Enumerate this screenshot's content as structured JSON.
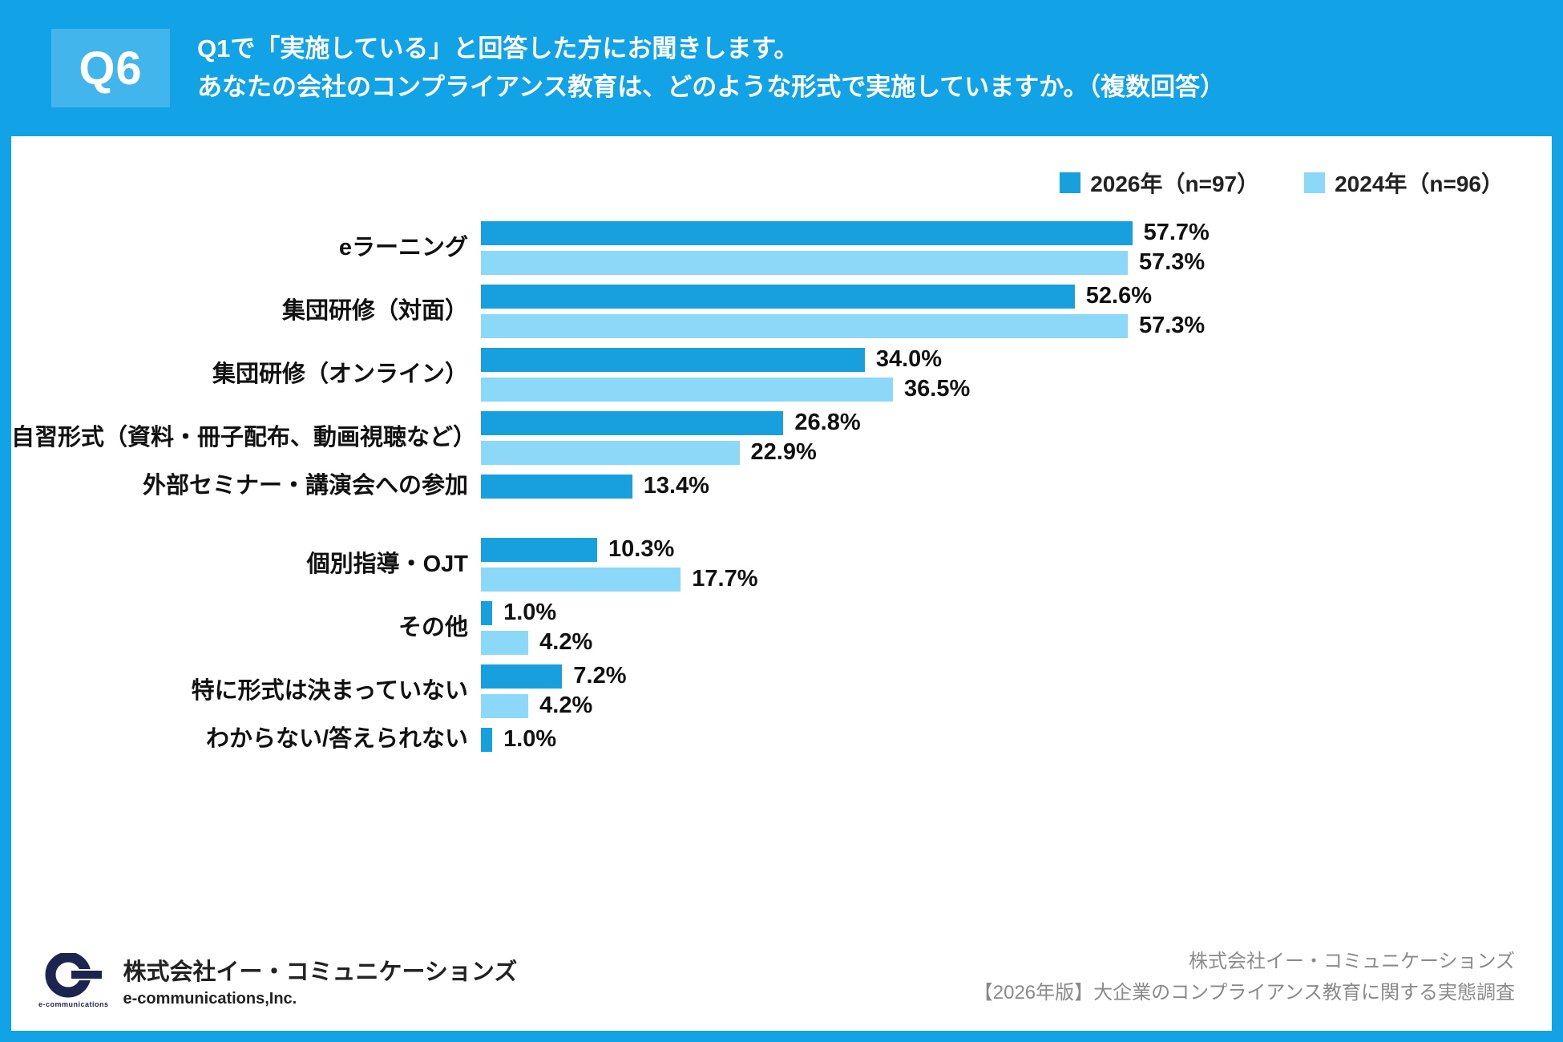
{
  "header": {
    "badge": "Q6",
    "title_line1": "Q1で「実施している」と回答した方にお聞きします。",
    "title_line2": "あなたの会社のコンプライアンス教育は、どのような形式で実施していますか。（複数回答）"
  },
  "colors": {
    "header_bg": "#12A3E6",
    "badge_bg": "#41B5EC",
    "series_2026": "#189FDE",
    "series_2024": "#8BD8F8"
  },
  "chart_data": {
    "type": "bar",
    "orientation": "horizontal",
    "max_percent": 60,
    "value_suffix": "%",
    "legend": [
      {
        "key": "2026",
        "label": "2026年（n=97）"
      },
      {
        "key": "2024",
        "label": "2024年（n=96）"
      }
    ],
    "categories": [
      "eラーニング",
      "集団研修（対面）",
      "集団研修（オンライン）",
      "自習形式（資料・冊子配布、動画視聴など）",
      "外部セミナー・講演会への参加",
      "個別指導・OJT",
      "その他",
      "特に形式は決まっていない",
      "わからない/答えられない"
    ],
    "series": [
      {
        "name": "2026年（n=97）",
        "key": "2026",
        "values": [
          57.7,
          52.6,
          34.0,
          26.8,
          13.4,
          10.3,
          1.0,
          7.2,
          1.0
        ]
      },
      {
        "name": "2024年（n=96）",
        "key": "2024",
        "values": [
          57.3,
          57.3,
          36.5,
          22.9,
          null,
          17.7,
          4.2,
          4.2,
          null
        ]
      }
    ]
  },
  "footer": {
    "logo_text": "e-communications",
    "company_jp": "株式会社イー・コミュニケーションズ",
    "company_en": "e-communications,Inc.",
    "credit_line1": "株式会社イー・コミュニケーションズ",
    "credit_line2": "【2026年版】大企業のコンプライアンス教育に関する実態調査"
  }
}
